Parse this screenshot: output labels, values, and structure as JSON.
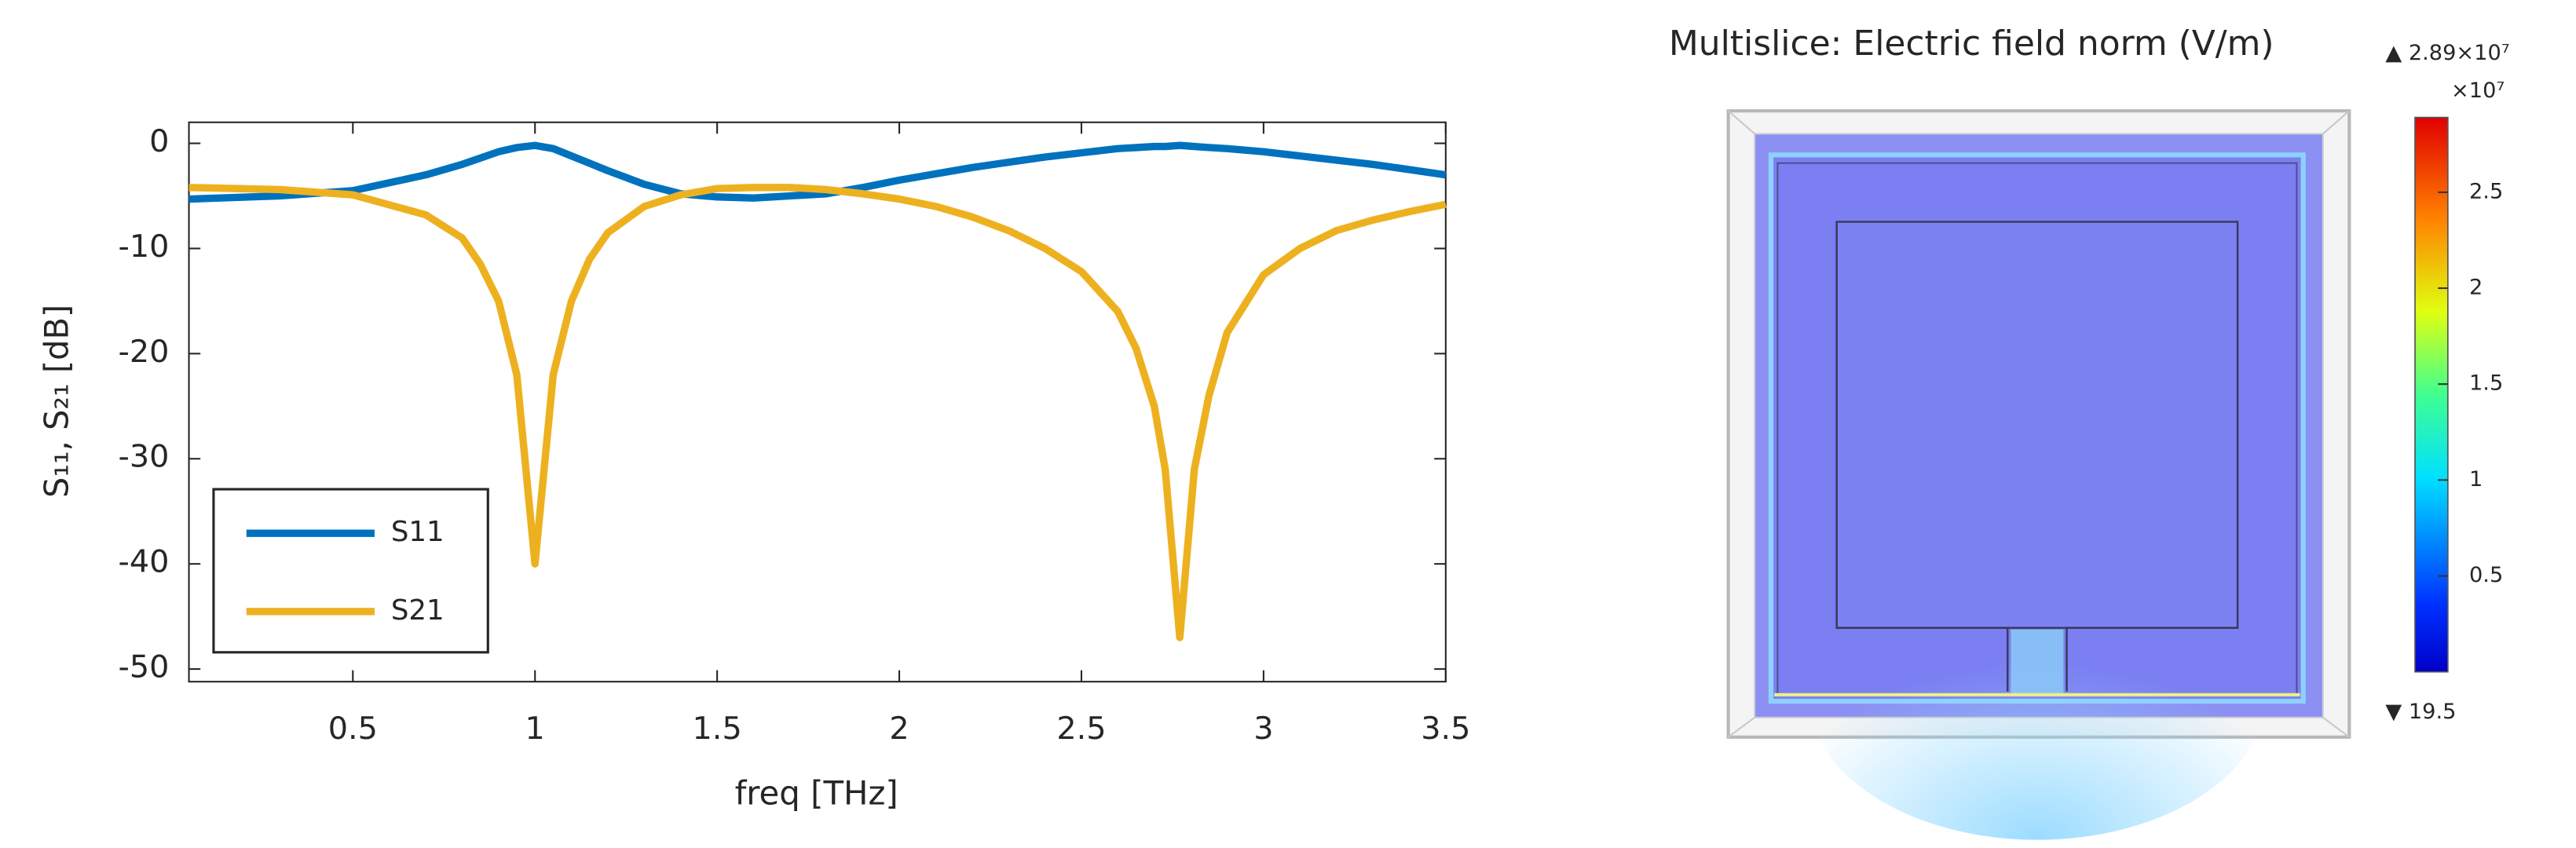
{
  "chart_data": [
    {
      "type": "line",
      "x_label": "freq [THz]",
      "y_label": "S₁₁, S₂₁ [dB]",
      "xlim": [
        0.05,
        3.5
      ],
      "ylim": [
        -51.2,
        2
      ],
      "xticks": [
        0.5,
        1,
        1.5,
        2,
        2.5,
        3,
        3.5
      ],
      "yticks": [
        0,
        -10,
        -20,
        -30,
        -40,
        -50
      ],
      "legend": "lower left",
      "x": [
        0.05,
        0.3,
        0.5,
        0.7,
        0.8,
        0.85,
        0.9,
        0.95,
        1.0,
        1.05,
        1.1,
        1.15,
        1.2,
        1.3,
        1.4,
        1.5,
        1.6,
        1.7,
        1.8,
        1.9,
        2.0,
        2.1,
        2.2,
        2.3,
        2.4,
        2.5,
        2.6,
        2.65,
        2.7,
        2.73,
        2.77,
        2.81,
        2.85,
        2.9,
        3.0,
        3.1,
        3.2,
        3.3,
        3.4,
        3.5
      ],
      "series": [
        {
          "name": "S11",
          "color": "#0072bd",
          "values": [
            -5.3,
            -5.0,
            -4.5,
            -3.0,
            -2.0,
            -1.4,
            -0.8,
            -0.4,
            -0.2,
            -0.5,
            -1.2,
            -1.9,
            -2.6,
            -3.9,
            -4.8,
            -5.1,
            -5.2,
            -5.0,
            -4.8,
            -4.2,
            -3.5,
            -2.9,
            -2.3,
            -1.8,
            -1.3,
            -0.9,
            -0.5,
            -0.4,
            -0.3,
            -0.3,
            -0.2,
            -0.3,
            -0.4,
            -0.5,
            -0.8,
            -1.2,
            -1.6,
            -2.0,
            -2.5,
            -3.0
          ]
        },
        {
          "name": "S21",
          "color": "#edb120",
          "values": [
            -4.2,
            -4.4,
            -4.9,
            -6.8,
            -9.0,
            -11.5,
            -15.0,
            -22.0,
            -40.0,
            -22.0,
            -15.0,
            -11.0,
            -8.5,
            -6.0,
            -4.9,
            -4.3,
            -4.2,
            -4.2,
            -4.4,
            -4.8,
            -5.3,
            -6.0,
            -7.0,
            -8.3,
            -10.0,
            -12.2,
            -16.0,
            -19.5,
            -25.0,
            -31.0,
            -47.0,
            -31.0,
            -24.0,
            -18.0,
            -12.5,
            -10.0,
            -8.3,
            -7.3,
            -6.5,
            -5.8
          ]
        }
      ]
    },
    {
      "type": "colorbar",
      "title": "Multislice: Electric field norm (V/m)",
      "max_label": "▲ 2.89×10⁷",
      "multiplier": "×10⁷",
      "min_label": "▼ 19.5",
      "ylim": [
        1.95e-06,
        2.89
      ],
      "yticks": [
        0.5,
        1,
        1.5,
        2,
        2.5
      ]
    }
  ]
}
